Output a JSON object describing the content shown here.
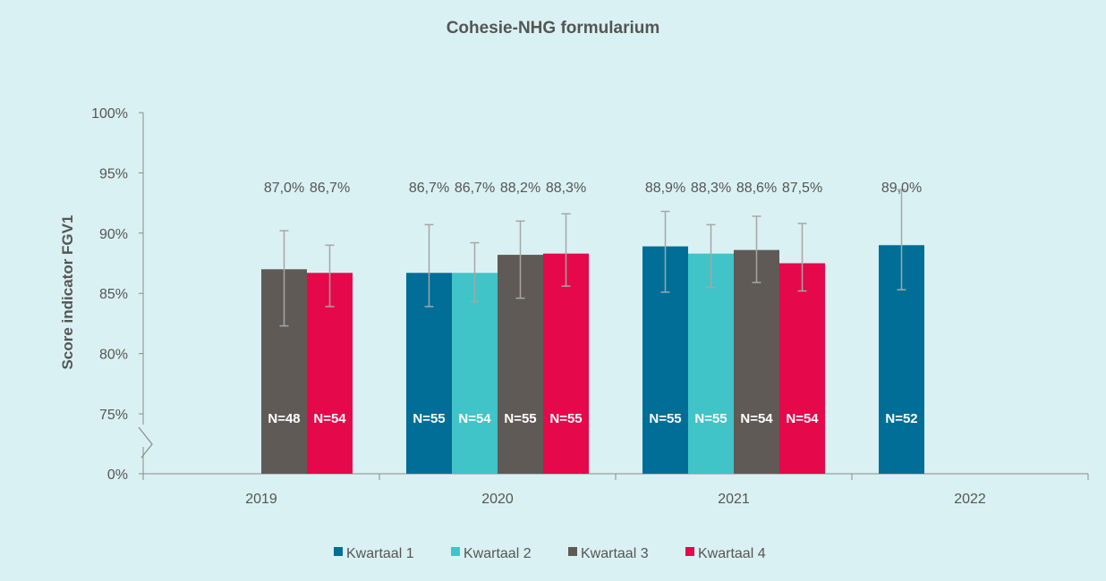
{
  "chart_data": {
    "type": "bar",
    "title": "Cohesie-NHG formularium",
    "ylabel": "Score indicator FGV1",
    "xlabel": "",
    "ylim": [
      75,
      100
    ],
    "axis_break": true,
    "y_ticks": [
      {
        "value": 0,
        "label": "0%"
      },
      {
        "value": 75,
        "label": "75%"
      },
      {
        "value": 80,
        "label": "80%"
      },
      {
        "value": 85,
        "label": "85%"
      },
      {
        "value": 90,
        "label": "90%"
      },
      {
        "value": 95,
        "label": "95%"
      },
      {
        "value": 100,
        "label": "100%"
      }
    ],
    "categories": [
      "2019",
      "2020",
      "2021",
      "2022"
    ],
    "legend_position": "bottom",
    "series": [
      {
        "name": "Kwartaal 1",
        "color": "#006e96",
        "values": [
          null,
          86.7,
          88.9,
          89.0
        ],
        "labels": [
          null,
          "86,7%",
          "88,9%",
          "89,0%"
        ],
        "n": [
          null,
          "N=55",
          "N=55",
          "N=52"
        ],
        "err_low": [
          null,
          83.9,
          85.1,
          85.3
        ],
        "err_high": [
          null,
          90.7,
          91.8,
          93.6
        ]
      },
      {
        "name": "Kwartaal 2",
        "color": "#40c4c8",
        "values": [
          null,
          86.7,
          88.3,
          null
        ],
        "labels": [
          null,
          "86,7%",
          "88,3%",
          null
        ],
        "n": [
          null,
          "N=54",
          "N=55",
          null
        ],
        "err_low": [
          null,
          84.3,
          85.5,
          null
        ],
        "err_high": [
          null,
          89.2,
          90.7,
          null
        ]
      },
      {
        "name": "Kwartaal 3",
        "color": "#5f5a56",
        "values": [
          87.0,
          88.2,
          88.6,
          null
        ],
        "labels": [
          "87,0%",
          "88,2%",
          "88,6%",
          null
        ],
        "n": [
          "N=48",
          "N=55",
          "N=54",
          null
        ],
        "err_low": [
          82.3,
          84.6,
          85.9,
          null
        ],
        "err_high": [
          90.2,
          91.0,
          91.4,
          null
        ]
      },
      {
        "name": "Kwartaal 4",
        "color": "#e5084b",
        "values": [
          86.7,
          88.3,
          87.5,
          null
        ],
        "labels": [
          "86,7%",
          "88,3%",
          "87,5%",
          null
        ],
        "n": [
          "N=54",
          "N=55",
          "N=54",
          null
        ],
        "err_low": [
          83.9,
          85.6,
          85.2,
          null
        ],
        "err_high": [
          89.0,
          91.6,
          90.8,
          null
        ]
      }
    ]
  }
}
